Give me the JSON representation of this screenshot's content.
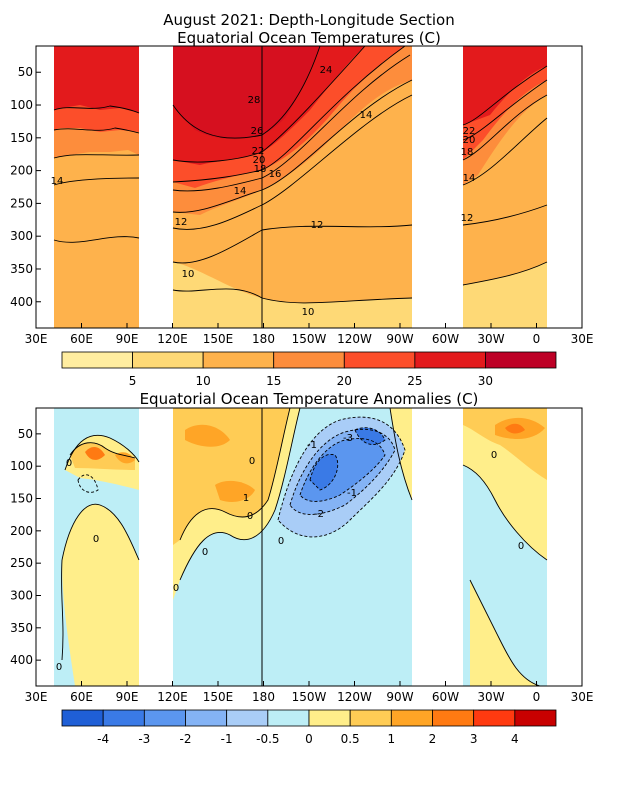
{
  "chart_data": [
    {
      "type": "heatmap",
      "title": "August 2021: Depth-Longitude Section",
      "subtitle": "Equatorial Ocean Temperatures (C)",
      "x_ticks": [
        "30E",
        "60E",
        "90E",
        "120E",
        "150E",
        "180",
        "150W",
        "120W",
        "90W",
        "60W",
        "30W",
        "0",
        "30E"
      ],
      "y_ticks": [
        "50",
        "100",
        "150",
        "200",
        "250",
        "300",
        "350",
        "400"
      ],
      "colorbar": {
        "labels": [
          "5",
          "10",
          "15",
          "20",
          "25",
          "30"
        ],
        "colors": [
          "#ffeda0",
          "#fed976",
          "#feb24c",
          "#fd8d3c",
          "#fc4e2a",
          "#e31a1c",
          "#bd0026"
        ]
      },
      "contour_labels": [
        "24",
        "28",
        "26",
        "22",
        "20",
        "18",
        "16",
        "14",
        "12",
        "10",
        "14",
        "12",
        "10",
        "14",
        "22",
        "20",
        "18",
        "14",
        "12"
      ]
    },
    {
      "type": "heatmap",
      "title": "Equatorial Ocean Temperature Anomalies (C)",
      "x_ticks": [
        "30E",
        "60E",
        "90E",
        "120E",
        "150E",
        "180",
        "150W",
        "120W",
        "90W",
        "60W",
        "30W",
        "0",
        "30E"
      ],
      "y_ticks": [
        "50",
        "100",
        "150",
        "200",
        "250",
        "300",
        "350",
        "400"
      ],
      "colorbar": {
        "labels": [
          "-4",
          "-3",
          "-2",
          "-1",
          "-0.5",
          "0",
          "0.5",
          "1",
          "2",
          "3",
          "4"
        ],
        "colors": [
          "#1f5fd6",
          "#3a7ae6",
          "#5b96ef",
          "#84b3f5",
          "#a9cdf7",
          "#bdeef6",
          "#ffee8a",
          "#ffcc55",
          "#ffa526",
          "#ff7a12",
          "#ff3a10",
          "#c80000"
        ]
      },
      "contour_labels": [
        "-1",
        "-3",
        "-1",
        "-2",
        "0",
        "0",
        "0",
        "0",
        "1",
        "0",
        "0",
        "0",
        "0",
        "0",
        "0"
      ]
    }
  ]
}
